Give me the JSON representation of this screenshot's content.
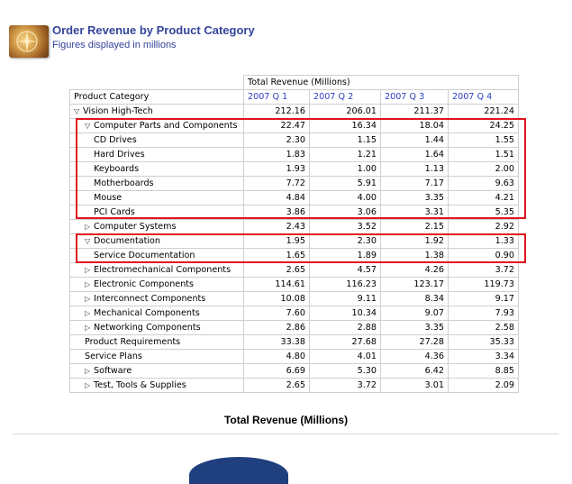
{
  "header": {
    "title": "Order Revenue by Product Category",
    "subtitle": "Figures displayed in millions",
    "logo_icon": "compass-icon"
  },
  "table": {
    "measure_label": "Total Revenue (Millions)",
    "row_header": "Product Category",
    "columns": [
      "2007 Q 1",
      "2007 Q 2",
      "2007 Q 3",
      "2007 Q 4"
    ],
    "rows": [
      {
        "label": "Vision High-Tech",
        "level": 0,
        "toggle": "expanded",
        "values": [
          "212.16",
          "206.01",
          "211.37",
          "221.24"
        ]
      },
      {
        "label": "Computer Parts and Components",
        "level": 1,
        "toggle": "expanded",
        "values": [
          "22.47",
          "16.34",
          "18.04",
          "24.25"
        ]
      },
      {
        "label": "CD Drives",
        "level": 2,
        "toggle": "none",
        "values": [
          "2.30",
          "1.15",
          "1.44",
          "1.55"
        ]
      },
      {
        "label": "Hard Drives",
        "level": 2,
        "toggle": "none",
        "values": [
          "1.83",
          "1.21",
          "1.64",
          "1.51"
        ]
      },
      {
        "label": "Keyboards",
        "level": 2,
        "toggle": "none",
        "values": [
          "1.93",
          "1.00",
          "1.13",
          "2.00"
        ]
      },
      {
        "label": "Motherboards",
        "level": 2,
        "toggle": "none",
        "values": [
          "7.72",
          "5.91",
          "7.17",
          "9.63"
        ]
      },
      {
        "label": "Mouse",
        "level": 2,
        "toggle": "none",
        "values": [
          "4.84",
          "4.00",
          "3.35",
          "4.21"
        ]
      },
      {
        "label": "PCI Cards",
        "level": 2,
        "toggle": "none",
        "values": [
          "3.86",
          "3.06",
          "3.31",
          "5.35"
        ]
      },
      {
        "label": "Computer Systems",
        "level": 1,
        "toggle": "collapsed",
        "values": [
          "2.43",
          "3.52",
          "2.15",
          "2.92"
        ]
      },
      {
        "label": "Documentation",
        "level": 1,
        "toggle": "expanded",
        "values": [
          "1.95",
          "2.30",
          "1.92",
          "1.33"
        ]
      },
      {
        "label": "Service Documentation",
        "level": 2,
        "toggle": "none",
        "values": [
          "1.65",
          "1.89",
          "1.38",
          "0.90"
        ]
      },
      {
        "label": "Electromechanical Components",
        "level": 1,
        "toggle": "collapsed",
        "values": [
          "2.65",
          "4.57",
          "4.26",
          "3.72"
        ]
      },
      {
        "label": "Electronic Components",
        "level": 1,
        "toggle": "collapsed",
        "values": [
          "114.61",
          "116.23",
          "123.17",
          "119.73"
        ]
      },
      {
        "label": "Interconnect Components",
        "level": 1,
        "toggle": "collapsed",
        "values": [
          "10.08",
          "9.11",
          "8.34",
          "9.17"
        ]
      },
      {
        "label": "Mechanical Components",
        "level": 1,
        "toggle": "collapsed",
        "values": [
          "7.60",
          "10.34",
          "9.07",
          "7.93"
        ]
      },
      {
        "label": "Networking Components",
        "level": 1,
        "toggle": "collapsed",
        "values": [
          "2.86",
          "2.88",
          "3.35",
          "2.58"
        ]
      },
      {
        "label": "Product Requirements",
        "level": 1,
        "toggle": "none",
        "values": [
          "33.38",
          "27.68",
          "27.28",
          "35.33"
        ]
      },
      {
        "label": "Service Plans",
        "level": 1,
        "toggle": "none",
        "values": [
          "4.80",
          "4.01",
          "4.36",
          "3.34"
        ]
      },
      {
        "label": "Software",
        "level": 1,
        "toggle": "collapsed",
        "values": [
          "6.69",
          "5.30",
          "6.42",
          "8.85"
        ]
      },
      {
        "label": "Test, Tools & Supplies",
        "level": 1,
        "toggle": "collapsed",
        "values": [
          "2.65",
          "3.72",
          "3.01",
          "2.09"
        ]
      }
    ]
  },
  "chart": {
    "title": "Total Revenue (Millions)",
    "pie_color": "#1f3f7e"
  },
  "colors": {
    "title_blue": "#33449a",
    "link_blue": "#2a3fbf",
    "highlight_red": "#e0141e"
  }
}
